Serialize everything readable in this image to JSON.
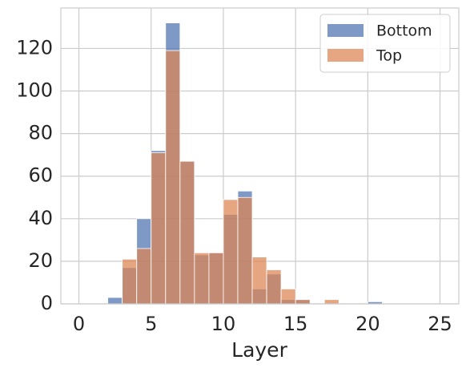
{
  "chart_data": {
    "type": "histogram",
    "x_label": "Layer",
    "bins": [
      0,
      1,
      2,
      3,
      4,
      5,
      6,
      7,
      8,
      9,
      10,
      11,
      12,
      13,
      14,
      15,
      16,
      17,
      18,
      19,
      20,
      21,
      22,
      23,
      24,
      25
    ],
    "series": [
      {
        "name": "Bottom",
        "color": "#4c72b0",
        "values": [
          0,
          0,
          3,
          17,
          40,
          72,
          132,
          67,
          23,
          24,
          42,
          53,
          7,
          14,
          2,
          2,
          0,
          0,
          0,
          0,
          1,
          0,
          0,
          0,
          0
        ]
      },
      {
        "name": "Top",
        "color": "#dd8452",
        "values": [
          0,
          0,
          0,
          21,
          26,
          71,
          119,
          67,
          24,
          24,
          49,
          50,
          22,
          16,
          7,
          2,
          0,
          2,
          0,
          0,
          0,
          0,
          0,
          0,
          0
        ]
      }
    ],
    "xlim": [
      -1.25,
      26.3
    ],
    "ylim": [
      0,
      139
    ],
    "xticks": [
      0,
      5,
      10,
      15,
      20,
      25
    ],
    "yticks": [
      0,
      20,
      40,
      60,
      80,
      100,
      120
    ],
    "grid": true,
    "legend": "upper right"
  }
}
